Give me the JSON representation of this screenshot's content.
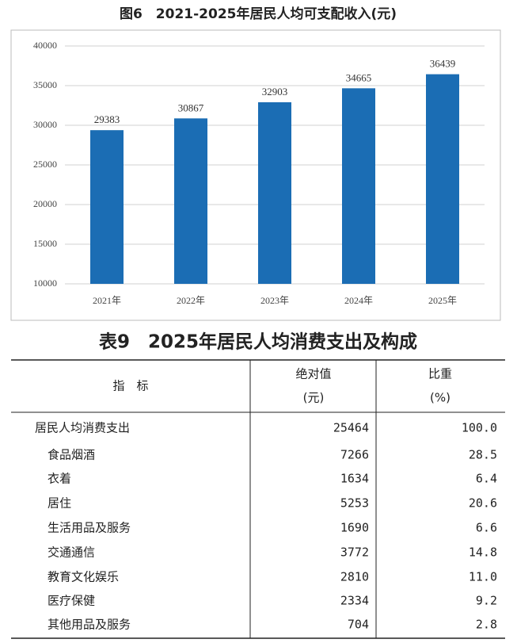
{
  "chart_data": {
    "type": "bar",
    "title": "图6　2021-2025年居民人均可支配收入(元)",
    "categories": [
      "2021年",
      "2022年",
      "2023年",
      "2024年",
      "2025年"
    ],
    "values": [
      29383,
      30867,
      32903,
      34665,
      36439
    ],
    "color": "#1b6db4",
    "ylim": [
      10000,
      40000
    ],
    "yticks": [
      10000,
      15000,
      20000,
      25000,
      30000,
      35000,
      40000
    ],
    "grid": true
  },
  "table": {
    "title": "表9　2025年居民人均消费支出及构成",
    "header": [
      "指　标",
      [
        "绝对值",
        "(元)"
      ],
      [
        "比重",
        "(%)"
      ]
    ],
    "rows": [
      [
        "居民人均消费支出",
        25464,
        "100.0"
      ],
      [
        "食品烟酒",
        7266,
        "28.5"
      ],
      [
        "衣着",
        1634,
        "6.4"
      ],
      [
        "居住",
        5253,
        "20.6"
      ],
      [
        "生活用品及服务",
        1690,
        "6.6"
      ],
      [
        "交通通信",
        3772,
        "14.8"
      ],
      [
        "教育文化娱乐",
        2810,
        "11.0"
      ],
      [
        "医疗保健",
        2334,
        "9.2"
      ],
      [
        "其他用品及服务",
        704,
        "2.8"
      ]
    ]
  }
}
